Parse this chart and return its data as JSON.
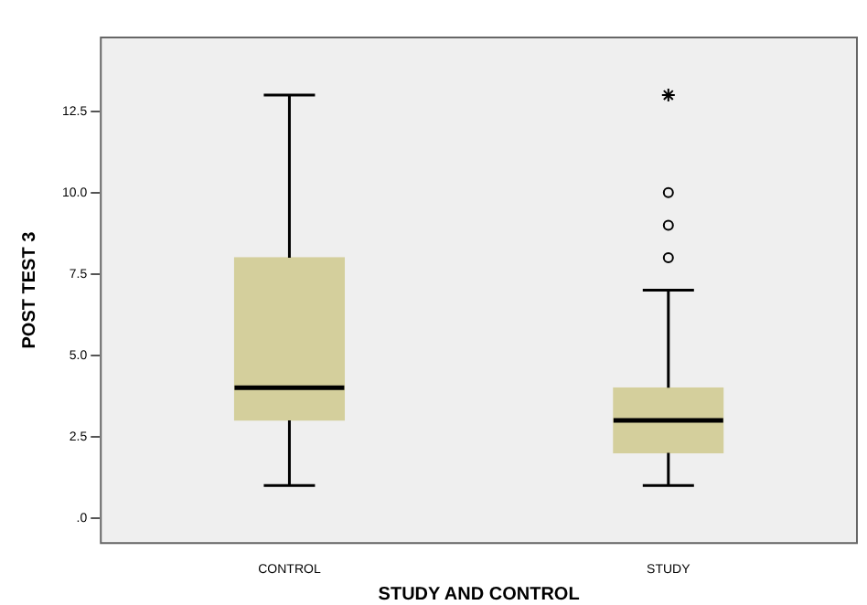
{
  "chart_data": {
    "type": "box",
    "xlabel": "STUDY AND CONTROL",
    "ylabel": "POST TEST 3",
    "categories": [
      "CONTROL",
      "STUDY"
    ],
    "boxes": [
      {
        "low": 1,
        "q1": 3,
        "median": 4,
        "q3": 8,
        "high": 13
      },
      {
        "low": 1,
        "q1": 2,
        "median": 3,
        "q3": 4,
        "high": 7,
        "outliers": [
          8,
          9,
          10,
          13
        ]
      }
    ],
    "color": "#d4cf9c",
    "ylim": [
      -0.8,
      14.8
    ],
    "yticks": [
      {
        "value": 0,
        "label": ".0"
      },
      2.5,
      {
        "value": 5,
        "label": "5.0"
      },
      7.5,
      {
        "value": 10,
        "label": "10.0"
      },
      12.5
    ],
    "grid": false,
    "legend": false
  }
}
